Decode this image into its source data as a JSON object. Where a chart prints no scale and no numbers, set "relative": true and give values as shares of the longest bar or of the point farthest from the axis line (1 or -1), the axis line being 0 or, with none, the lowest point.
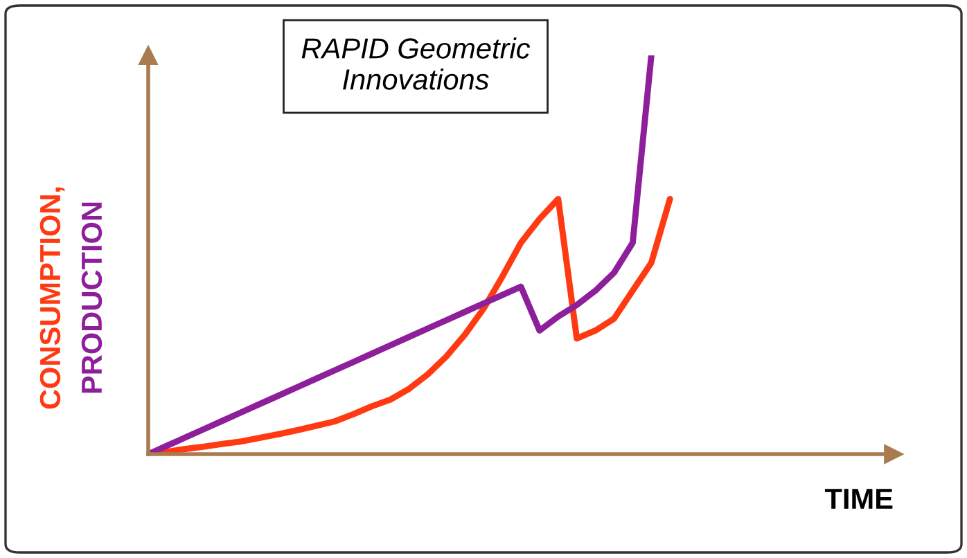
{
  "chart_data": {
    "type": "line",
    "relative": true,
    "xlabel": "TIME",
    "annotations": [
      "RAPID Geometric\nInnovations"
    ],
    "legend": false,
    "marker": "none",
    "line_style": "solid",
    "categories": [
      null,
      null,
      null,
      null,
      null,
      null,
      null,
      null,
      null,
      null,
      null,
      null,
      null,
      null,
      null,
      null,
      null,
      null,
      null,
      null,
      null,
      null,
      null,
      null,
      null,
      null,
      null,
      null,
      null,
      null,
      null,
      null,
      null,
      null,
      null,
      null,
      null,
      null,
      null,
      null,
      null
    ],
    "series": [
      {
        "name": "CONSUMPTION,",
        "color": "#ff3a12",
        "values": [
          0,
          0.006,
          0.013,
          0.019,
          0.026,
          0.032,
          0.041,
          0.05,
          0.06,
          0.071,
          0.082,
          0.1,
          0.12,
          0.137,
          0.164,
          0.2,
          0.245,
          0.3,
          0.365,
          0.445,
          0.53,
          0.59,
          0.64,
          0.29,
          0.31,
          0.34,
          0.41,
          0.48,
          0.64,
          null,
          null,
          null,
          null,
          null,
          null,
          null,
          null,
          null,
          null,
          null,
          null
        ]
      },
      {
        "name": "PRODUCTION",
        "color": "#8e1f9a",
        "values": [
          0,
          0.021,
          0.042,
          0.063,
          0.084,
          0.105,
          0.126,
          0.147,
          0.168,
          0.189,
          0.21,
          0.231,
          0.252,
          0.273,
          0.294,
          0.315,
          0.336,
          0.357,
          0.378,
          0.399,
          0.42,
          0.31,
          0.345,
          0.374,
          0.41,
          0.455,
          0.53,
          1,
          null,
          null,
          null,
          null,
          null,
          null,
          null,
          null,
          null,
          null,
          null,
          null,
          null
        ]
      }
    ]
  }
}
